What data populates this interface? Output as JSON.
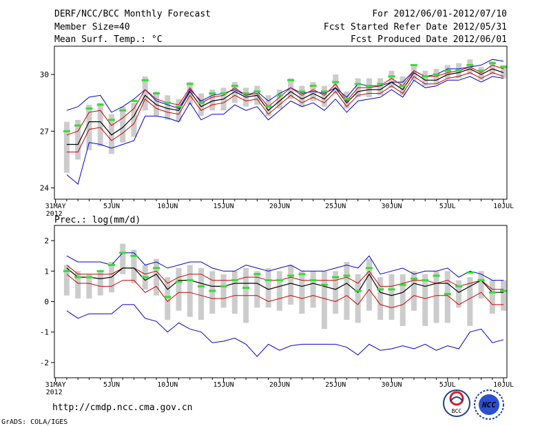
{
  "header": {
    "title": "DERF/NCC/BCC Monthly Forecast",
    "member_size": "Member Size=40",
    "variable": "Mean Surf. Temp.: °C",
    "period": "For 2012/06/01-2012/07/10",
    "start_date": "Fcst Started Refer Date 2012/05/31",
    "produced": "Fcst Produced Date 2012/06/01"
  },
  "footer": {
    "url": "http://cmdp.ncc.cma.gov.cn",
    "credit": "GrADS: COLA/IGES",
    "logo_bcc": "BCC",
    "logo_ncc": "NCC"
  },
  "colors": {
    "box": "#cccccc",
    "mean": "#000000",
    "spread": "#cc0000",
    "extreme": "#0000cc",
    "member": "#33dd33"
  },
  "chart_data": [
    {
      "type": "line",
      "title": "Mean Surf. Temp.: °C",
      "xlabel": "",
      "ylabel": "",
      "x_tick_labels": [
        "31MAY\n2012",
        "5JUN",
        "10JUN",
        "15JUN",
        "20JUN",
        "25JUN",
        "30JUN",
        "5JUL",
        "10JUL"
      ],
      "x_tick_days": [
        0,
        5,
        10,
        15,
        20,
        25,
        30,
        35,
        40
      ],
      "y_ticks": [
        24,
        27,
        30
      ],
      "ylim": [
        23.4,
        31.5
      ],
      "x_days": [
        1,
        2,
        3,
        4,
        5,
        6,
        7,
        8,
        9,
        10,
        11,
        12,
        13,
        14,
        15,
        16,
        17,
        18,
        19,
        20,
        21,
        22,
        23,
        24,
        25,
        26,
        27,
        28,
        29,
        30,
        31,
        32,
        33,
        34,
        35,
        36,
        37,
        38,
        39,
        40
      ],
      "series": [
        {
          "name": "max",
          "color": "extreme",
          "values": [
            28.1,
            28.3,
            28.8,
            28.9,
            28.0,
            28.3,
            28.7,
            29.2,
            28.6,
            28.4,
            28.2,
            29.2,
            28.6,
            28.9,
            29.0,
            29.2,
            28.9,
            29.1,
            28.6,
            29.0,
            29.3,
            29.0,
            29.1,
            29.0,
            29.3,
            28.8,
            29.5,
            29.4,
            29.4,
            29.6,
            29.6,
            30.2,
            29.9,
            30.0,
            30.3,
            30.3,
            30.4,
            30.5,
            30.8,
            30.7
          ]
        },
        {
          "name": "upper",
          "color": "spread",
          "values": [
            26.8,
            27.0,
            28.0,
            28.1,
            27.3,
            27.7,
            28.2,
            29.2,
            28.7,
            28.5,
            28.4,
            29.3,
            28.5,
            28.8,
            28.9,
            29.3,
            28.9,
            29.0,
            28.3,
            28.8,
            29.3,
            28.9,
            29.2,
            28.9,
            29.5,
            28.6,
            29.3,
            29.3,
            29.4,
            29.8,
            29.4,
            30.2,
            29.9,
            29.9,
            30.1,
            30.2,
            30.4,
            30.1,
            30.5,
            30.3
          ]
        },
        {
          "name": "mean",
          "color": "mean",
          "values": [
            26.3,
            26.3,
            27.5,
            27.5,
            26.8,
            27.2,
            27.8,
            28.9,
            28.4,
            28.2,
            28.1,
            29.1,
            28.3,
            28.6,
            28.7,
            29.1,
            28.8,
            28.9,
            28.1,
            28.6,
            29.1,
            28.7,
            29.0,
            28.7,
            29.3,
            28.5,
            29.1,
            29.2,
            29.2,
            29.6,
            29.2,
            30.1,
            29.7,
            29.7,
            30.0,
            30.1,
            30.3,
            30.0,
            30.3,
            30.1
          ]
        },
        {
          "name": "lower",
          "color": "spread",
          "values": [
            25.9,
            25.9,
            27.1,
            27.2,
            26.5,
            26.9,
            27.4,
            28.7,
            28.2,
            28.0,
            27.9,
            28.9,
            28.1,
            28.4,
            28.5,
            28.9,
            28.6,
            28.7,
            27.9,
            28.4,
            28.9,
            28.5,
            28.8,
            28.5,
            29.1,
            28.3,
            28.9,
            29.0,
            29.0,
            29.4,
            29.0,
            29.9,
            29.5,
            29.5,
            29.8,
            29.9,
            30.1,
            29.8,
            30.1,
            29.9
          ]
        },
        {
          "name": "min",
          "color": "extreme",
          "values": [
            24.7,
            24.2,
            26.4,
            26.3,
            26.1,
            26.3,
            26.5,
            27.8,
            27.8,
            27.7,
            27.5,
            28.5,
            27.6,
            27.9,
            27.9,
            28.4,
            28.1,
            28.3,
            27.6,
            28.1,
            28.6,
            28.3,
            28.5,
            28.1,
            28.7,
            28.0,
            28.6,
            28.7,
            28.8,
            29.2,
            28.8,
            29.7,
            29.3,
            29.4,
            29.7,
            29.7,
            29.9,
            29.6,
            29.9,
            29.8
          ]
        }
      ],
      "box_ranges": [
        [
          24.8,
          27.5
        ],
        [
          25.5,
          27.6
        ],
        [
          26.0,
          28.4
        ],
        [
          26.2,
          28.5
        ],
        [
          25.8,
          27.9
        ],
        [
          26.4,
          28.3
        ],
        [
          26.7,
          28.5
        ],
        [
          28.1,
          29.9
        ],
        [
          27.8,
          29.1
        ],
        [
          27.6,
          28.9
        ],
        [
          27.5,
          28.7
        ],
        [
          28.4,
          29.6
        ],
        [
          27.8,
          29.0
        ],
        [
          28.1,
          29.2
        ],
        [
          28.1,
          29.3
        ],
        [
          28.5,
          29.6
        ],
        [
          28.3,
          29.3
        ],
        [
          28.4,
          29.4
        ],
        [
          27.8,
          28.9
        ],
        [
          28.2,
          29.2
        ],
        [
          28.7,
          29.8
        ],
        [
          28.3,
          29.4
        ],
        [
          28.6,
          29.6
        ],
        [
          28.3,
          29.4
        ],
        [
          29.0,
          30.0
        ],
        [
          28.2,
          29.1
        ],
        [
          28.8,
          29.8
        ],
        [
          28.8,
          29.8
        ],
        [
          28.9,
          29.8
        ],
        [
          29.3,
          30.2
        ],
        [
          28.9,
          29.9
        ],
        [
          29.7,
          30.5
        ],
        [
          29.4,
          30.2
        ],
        [
          29.5,
          30.3
        ],
        [
          29.8,
          30.5
        ],
        [
          29.8,
          30.6
        ],
        [
          30.0,
          30.8
        ],
        [
          29.7,
          30.4
        ],
        [
          30.0,
          30.7
        ],
        [
          29.8,
          30.5
        ]
      ],
      "member_forecast": [
        27.0,
        27.3,
        28.2,
        28.4,
        27.6,
        28.1,
        28.6,
        29.7,
        29.0,
        28.5,
        28.3,
        29.5,
        28.5,
        29.0,
        29.0,
        29.4,
        29.0,
        29.1,
        28.3,
        28.9,
        29.7,
        29.1,
        29.4,
        29.1,
        29.6,
        28.7,
        29.5,
        29.4,
        29.5,
        29.9,
        29.4,
        30.5,
        29.9,
        30.0,
        30.2,
        30.2,
        30.5,
        30.2,
        30.6,
        30.4
      ]
    },
    {
      "type": "line",
      "title": "Prec.: log(mm/d)",
      "xlabel": "",
      "ylabel": "",
      "x_tick_labels": [
        "31MAY\n2012",
        "5JUN",
        "10JUN",
        "15JUN",
        "20JUN",
        "25JUN",
        "30JUN",
        "5JUL",
        "10JUL"
      ],
      "x_tick_days": [
        0,
        5,
        10,
        15,
        20,
        25,
        30,
        35,
        40
      ],
      "y_ticks": [
        -2,
        -1,
        0,
        1,
        2
      ],
      "ylim": [
        -2.5,
        2.5
      ],
      "x_days": [
        1,
        2,
        3,
        4,
        5,
        6,
        7,
        8,
        9,
        10,
        11,
        12,
        13,
        14,
        15,
        16,
        17,
        18,
        19,
        20,
        21,
        22,
        23,
        24,
        25,
        26,
        27,
        28,
        29,
        30,
        31,
        32,
        33,
        34,
        35,
        36,
        37,
        38,
        39,
        40
      ],
      "series": [
        {
          "name": "max",
          "color": "extreme",
          "values": [
            1.5,
            1.3,
            1.3,
            1.3,
            1.2,
            1.6,
            1.6,
            1.2,
            1.3,
            1.1,
            1.2,
            1.3,
            1.3,
            1.1,
            1.0,
            1.0,
            1.2,
            1.1,
            1.0,
            1.1,
            1.2,
            1.0,
            1.0,
            1.0,
            1.1,
            1.2,
            1.1,
            1.5,
            0.9,
            1.0,
            1.1,
            0.9,
            1.0,
            1.0,
            1.1,
            0.8,
            1.0,
            0.9,
            0.7,
            0.7
          ]
        },
        {
          "name": "upper",
          "color": "spread",
          "values": [
            1.2,
            0.9,
            0.9,
            0.9,
            0.9,
            1.1,
            1.1,
            0.9,
            1.0,
            0.6,
            0.8,
            0.9,
            0.9,
            0.7,
            0.7,
            0.7,
            0.8,
            0.8,
            0.7,
            0.7,
            0.8,
            0.7,
            0.7,
            0.7,
            0.7,
            0.8,
            0.6,
            1.0,
            0.5,
            0.5,
            0.6,
            0.7,
            0.7,
            0.6,
            0.7,
            0.5,
            0.6,
            0.7,
            0.4,
            0.4
          ]
        },
        {
          "name": "mean",
          "color": "mean",
          "values": [
            1.1,
            0.8,
            0.8,
            0.75,
            0.8,
            1.1,
            1.1,
            0.7,
            0.9,
            0.4,
            0.7,
            0.7,
            0.6,
            0.5,
            0.5,
            0.6,
            0.6,
            0.6,
            0.4,
            0.5,
            0.6,
            0.5,
            0.6,
            0.5,
            0.4,
            0.6,
            0.3,
            0.9,
            0.3,
            0.2,
            0.3,
            0.6,
            0.5,
            0.6,
            0.6,
            0.3,
            0.5,
            0.7,
            0.3,
            0.3
          ]
        },
        {
          "name": "lower",
          "color": "spread",
          "values": [
            0.9,
            0.6,
            0.6,
            0.5,
            0.5,
            0.7,
            0.7,
            0.3,
            0.5,
            0.0,
            0.3,
            0.3,
            0.2,
            0.1,
            0.1,
            0.2,
            0.2,
            0.2,
            0.0,
            0.1,
            0.2,
            0.1,
            0.2,
            0.1,
            0.0,
            0.2,
            -0.1,
            0.4,
            -0.1,
            -0.2,
            -0.1,
            0.2,
            0.1,
            0.2,
            0.2,
            -0.1,
            0.1,
            0.3,
            -0.1,
            -0.1
          ]
        },
        {
          "name": "min",
          "color": "extreme",
          "values": [
            -0.3,
            -0.55,
            -0.4,
            -0.4,
            -0.4,
            -0.1,
            -0.1,
            -0.55,
            -0.65,
            -1.0,
            -0.7,
            -0.9,
            -1.0,
            -1.35,
            -1.3,
            -1.2,
            -1.4,
            -1.8,
            -1.4,
            -1.6,
            -1.45,
            -1.4,
            -1.4,
            -1.4,
            -1.4,
            -1.5,
            -1.75,
            -1.4,
            -1.6,
            -1.55,
            -1.45,
            -1.55,
            -1.4,
            -1.6,
            -1.45,
            -1.55,
            -1.0,
            -0.9,
            -1.35,
            -1.25
          ]
        }
      ],
      "box_ranges": [
        [
          0.2,
          1.2
        ],
        [
          0.1,
          1.0
        ],
        [
          0.1,
          0.9
        ],
        [
          0.2,
          1.0
        ],
        [
          0.3,
          1.3
        ],
        [
          0.9,
          1.9
        ],
        [
          0.6,
          1.7
        ],
        [
          0.4,
          1.2
        ],
        [
          0.2,
          1.4
        ],
        [
          -0.6,
          0.8
        ],
        [
          -0.3,
          1.1
        ],
        [
          -0.5,
          1.2
        ],
        [
          -0.6,
          1.1
        ],
        [
          -0.4,
          1.0
        ],
        [
          -0.2,
          0.9
        ],
        [
          -0.4,
          1.0
        ],
        [
          -0.7,
          1.1
        ],
        [
          -0.2,
          1.0
        ],
        [
          -0.2,
          1.1
        ],
        [
          -0.3,
          1.0
        ],
        [
          -0.1,
          1.2
        ],
        [
          -0.4,
          1.0
        ],
        [
          -0.2,
          1.0
        ],
        [
          -0.9,
          1.0
        ],
        [
          -0.4,
          1.0
        ],
        [
          -0.6,
          1.3
        ],
        [
          -0.7,
          0.9
        ],
        [
          -0.3,
          1.4
        ],
        [
          -0.6,
          0.8
        ],
        [
          -0.6,
          0.9
        ],
        [
          -0.8,
          0.9
        ],
        [
          -0.3,
          1.0
        ],
        [
          -0.8,
          0.9
        ],
        [
          -0.7,
          1.0
        ],
        [
          -0.7,
          1.0
        ],
        [
          -0.2,
          0.7
        ],
        [
          -0.8,
          0.8
        ],
        [
          0.1,
          1.0
        ],
        [
          -0.4,
          0.7
        ],
        [
          -0.3,
          0.7
        ]
      ],
      "member_forecast": [
        1.0,
        0.8,
        0.8,
        1.0,
        1.2,
        1.6,
        1.5,
        0.8,
        1.1,
        0.15,
        0.65,
        0.7,
        0.5,
        0.35,
        0.5,
        0.7,
        0.45,
        0.9,
        0.7,
        0.7,
        0.85,
        0.9,
        0.7,
        0.55,
        0.8,
        0.85,
        0.35,
        1.1,
        0.4,
        0.4,
        0.55,
        0.75,
        0.7,
        0.85,
        0.25,
        0.5,
        0.95,
        0.7,
        0.3,
        0.35
      ]
    }
  ]
}
